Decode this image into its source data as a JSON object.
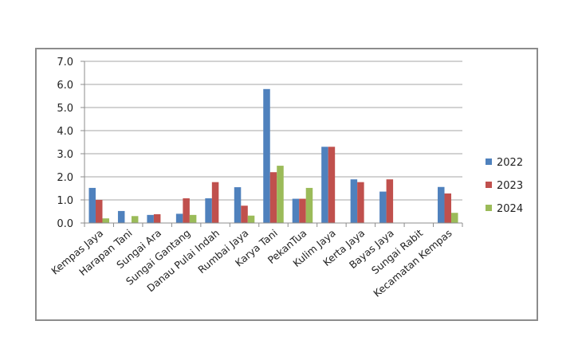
{
  "chart_data": {
    "type": "bar",
    "title": "",
    "xlabel": "",
    "ylabel": "",
    "ylim": [
      0,
      7
    ],
    "yticks": [
      "0.0",
      "1.0",
      "2.0",
      "3.0",
      "4.0",
      "5.0",
      "6.0",
      "7.0"
    ],
    "grid": true,
    "legend_position": "right",
    "categories": [
      "Kempas Jaya",
      "Harapan Tani",
      "Sungai Ara",
      "Sungai Gantang",
      "Danau Pulai Indah",
      "Rumbai Jaya",
      "Karya Tani",
      "PekanTua",
      "Kulim Jaya",
      "Kerta Jaya",
      "Bayas Jaya",
      "Sungai Rabit",
      "Kecamatan Kempas"
    ],
    "series": [
      {
        "name": "2022",
        "color": "#4F81BD",
        "values": [
          1.52,
          0.52,
          0.35,
          0.4,
          1.07,
          1.55,
          5.8,
          1.05,
          3.3,
          1.89,
          1.36,
          0,
          1.56
        ]
      },
      {
        "name": "2023",
        "color": "#C0504D",
        "values": [
          1.0,
          0,
          0.38,
          1.07,
          1.77,
          0.75,
          2.2,
          1.05,
          3.3,
          1.77,
          1.89,
          0,
          1.28
        ]
      },
      {
        "name": "2024",
        "color": "#9BBB59",
        "values": [
          0.2,
          0.3,
          0,
          0.35,
          0,
          0.32,
          2.48,
          1.52,
          0,
          0,
          0,
          0,
          0.44
        ]
      }
    ]
  }
}
